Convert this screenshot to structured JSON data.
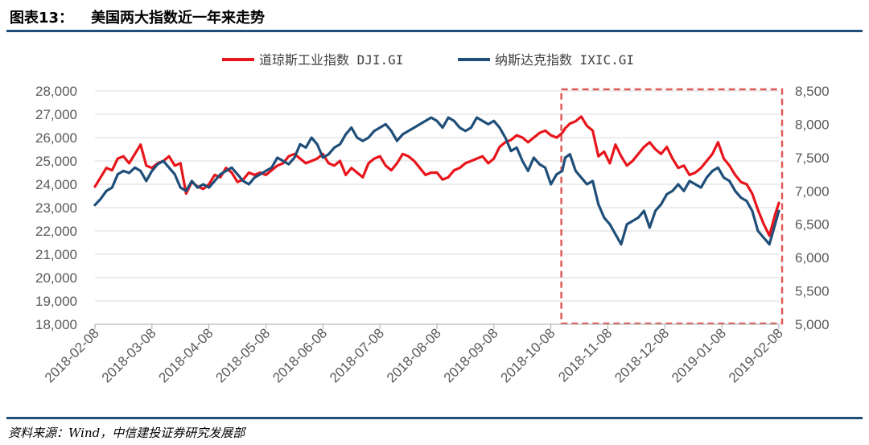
{
  "figure": {
    "label": "图表13：",
    "title": "美国两大指数近一年来走势",
    "source": "资料来源：Wind，中信建投证券研究发展部"
  },
  "chart_data": {
    "type": "line",
    "x_ticks": [
      "2018-02-08",
      "2018-03-08",
      "2018-04-08",
      "2018-05-08",
      "2018-06-08",
      "2018-07-08",
      "2018-08-08",
      "2018-09-08",
      "2018-10-08",
      "2018-11-08",
      "2018-12-08",
      "2019-01-08",
      "2019-02-08"
    ],
    "y_left": {
      "min": 18000,
      "max": 28000,
      "step": 1000,
      "ticks": [
        "18,000",
        "19,000",
        "20,000",
        "21,000",
        "22,000",
        "23,000",
        "24,000",
        "25,000",
        "26,000",
        "27,000",
        "28,000"
      ]
    },
    "y_right": {
      "min": 5000,
      "max": 8500,
      "step": 500,
      "ticks": [
        "5,000",
        "5,500",
        "6,000",
        "6,500",
        "7,000",
        "7,500",
        "8,000",
        "8,500"
      ]
    },
    "grid": true,
    "legend_position": "top",
    "highlight_box": {
      "x_start": 24.55,
      "x_end": 36.0,
      "color": "#e05a5a",
      "style": "dashed"
    },
    "series": [
      {
        "name": "道琼斯工业指数 DJI.GI",
        "axis": "left",
        "color": "#e8141b",
        "x": [
          0,
          0.3,
          0.6,
          0.9,
          1.2,
          1.5,
          1.8,
          2.1,
          2.4,
          2.7,
          3.0,
          3.3,
          3.6,
          3.9,
          4.2,
          4.5,
          4.8,
          5.1,
          5.4,
          5.7,
          6.0,
          6.3,
          6.6,
          6.9,
          7.2,
          7.5,
          7.8,
          8.1,
          8.4,
          8.7,
          9.0,
          9.3,
          9.6,
          9.9,
          10.2,
          10.5,
          10.8,
          11.1,
          11.4,
          11.7,
          12.0,
          12.3,
          12.6,
          12.9,
          13.2,
          13.5,
          13.8,
          14.1,
          14.4,
          14.7,
          15.0,
          15.3,
          15.6,
          15.9,
          16.2,
          16.5,
          16.8,
          17.1,
          17.4,
          17.7,
          18.0,
          18.3,
          18.6,
          18.9,
          19.2,
          19.5,
          19.8,
          20.1,
          20.4,
          20.7,
          21.0,
          21.3,
          21.6,
          21.9,
          22.2,
          22.5,
          22.8,
          23.1,
          23.4,
          23.7,
          24.0,
          24.3,
          24.6,
          24.75,
          25.0,
          25.3,
          25.6,
          25.9,
          26.2,
          26.5,
          26.8,
          27.1,
          27.4,
          27.7,
          28.0,
          28.3,
          28.6,
          28.9,
          29.2,
          29.5,
          29.8,
          30.1,
          30.4,
          30.7,
          31.0,
          31.3,
          31.6,
          31.9,
          32.2,
          32.5,
          32.8,
          33.1,
          33.4,
          33.7,
          34.0,
          34.3,
          34.6,
          34.9,
          35.2,
          35.5,
          35.8,
          36.0
        ],
        "y": [
          23900,
          24300,
          24700,
          24600,
          25100,
          25200,
          24900,
          25300,
          25700,
          24800,
          24700,
          24900,
          25000,
          25200,
          24800,
          24900,
          23600,
          24100,
          23900,
          23800,
          24000,
          24400,
          24300,
          24700,
          24500,
          24100,
          24200,
          24500,
          24400,
          24500,
          24400,
          24600,
          24800,
          24900,
          25200,
          25300,
          25100,
          24900,
          25000,
          25100,
          25300,
          24900,
          24800,
          25000,
          24400,
          24700,
          24500,
          24300,
          24900,
          25100,
          25200,
          24800,
          24600,
          24900,
          25300,
          25200,
          25000,
          24700,
          24400,
          24500,
          24500,
          24200,
          24300,
          24600,
          24700,
          24900,
          25000,
          25100,
          25200,
          24900,
          25100,
          25600,
          25800,
          25900,
          26100,
          26000,
          25800,
          26000,
          26200,
          26300,
          26100,
          26000,
          26200,
          26400,
          26600,
          26700,
          26900,
          26500,
          26300,
          25200,
          25400,
          24900,
          25700,
          25200,
          24800,
          25000,
          25300,
          25600,
          25800,
          25500,
          25300,
          25600,
          25100,
          24700,
          24800,
          24400,
          24500,
          24700,
          25000,
          25300,
          25800,
          25100,
          24800,
          24400,
          24100,
          24000,
          23600,
          22900,
          22300,
          21800,
          22700,
          23200
        ]
      },
      {
        "name": "纳斯达克指数 IXIC.GI",
        "axis": "right",
        "color": "#1f4e79",
        "x": [
          0,
          0.3,
          0.6,
          0.9,
          1.2,
          1.5,
          1.8,
          2.1,
          2.4,
          2.7,
          3.0,
          3.3,
          3.6,
          3.9,
          4.2,
          4.5,
          4.8,
          5.1,
          5.4,
          5.7,
          6.0,
          6.3,
          6.6,
          6.9,
          7.2,
          7.5,
          7.8,
          8.1,
          8.4,
          8.7,
          9.0,
          9.3,
          9.6,
          9.9,
          10.2,
          10.5,
          10.8,
          11.1,
          11.4,
          11.7,
          12.0,
          12.3,
          12.6,
          12.9,
          13.2,
          13.5,
          13.8,
          14.1,
          14.4,
          14.7,
          15.0,
          15.3,
          15.6,
          15.9,
          16.2,
          16.5,
          16.8,
          17.1,
          17.4,
          17.7,
          18.0,
          18.3,
          18.6,
          18.9,
          19.2,
          19.5,
          19.8,
          20.1,
          20.4,
          20.7,
          21.0,
          21.3,
          21.6,
          21.9,
          22.2,
          22.5,
          22.8,
          23.1,
          23.4,
          23.7,
          24.0,
          24.3,
          24.6,
          24.75,
          25.0,
          25.3,
          25.6,
          25.9,
          26.2,
          26.5,
          26.8,
          27.1,
          27.4,
          27.7,
          28.0,
          28.3,
          28.6,
          28.9,
          29.2,
          29.5,
          29.8,
          30.1,
          30.4,
          30.7,
          31.0,
          31.3,
          31.6,
          31.9,
          32.2,
          32.5,
          32.8,
          33.1,
          33.4,
          33.7,
          34.0,
          34.3,
          34.6,
          34.9,
          35.2,
          35.5,
          35.8,
          36.0
        ],
        "y": [
          6790,
          6880,
          7000,
          7050,
          7250,
          7300,
          7270,
          7350,
          7300,
          7150,
          7300,
          7400,
          7450,
          7350,
          7250,
          7050,
          7000,
          7150,
          7050,
          7100,
          7050,
          7150,
          7250,
          7300,
          7350,
          7250,
          7150,
          7100,
          7200,
          7250,
          7300,
          7350,
          7500,
          7450,
          7400,
          7500,
          7700,
          7650,
          7800,
          7700,
          7500,
          7550,
          7650,
          7700,
          7850,
          7950,
          7800,
          7750,
          7800,
          7900,
          7950,
          8000,
          7900,
          7750,
          7850,
          7900,
          7950,
          8000,
          8050,
          8100,
          8050,
          7950,
          8100,
          8050,
          7950,
          7900,
          7950,
          8100,
          8050,
          8000,
          8050,
          7950,
          7800,
          7600,
          7650,
          7450,
          7300,
          7500,
          7400,
          7350,
          7100,
          7250,
          7300,
          7500,
          7550,
          7300,
          7200,
          7100,
          7150,
          6800,
          6600,
          6500,
          6350,
          6200,
          6500,
          6550,
          6600,
          6700,
          6450,
          6700,
          6800,
          6950,
          7000,
          7100,
          7000,
          7150,
          7100,
          7050,
          7200,
          7300,
          7350,
          7200,
          7150,
          7000,
          6900,
          6850,
          6700,
          6400,
          6300,
          6200,
          6500,
          6700
        ]
      }
    ]
  }
}
